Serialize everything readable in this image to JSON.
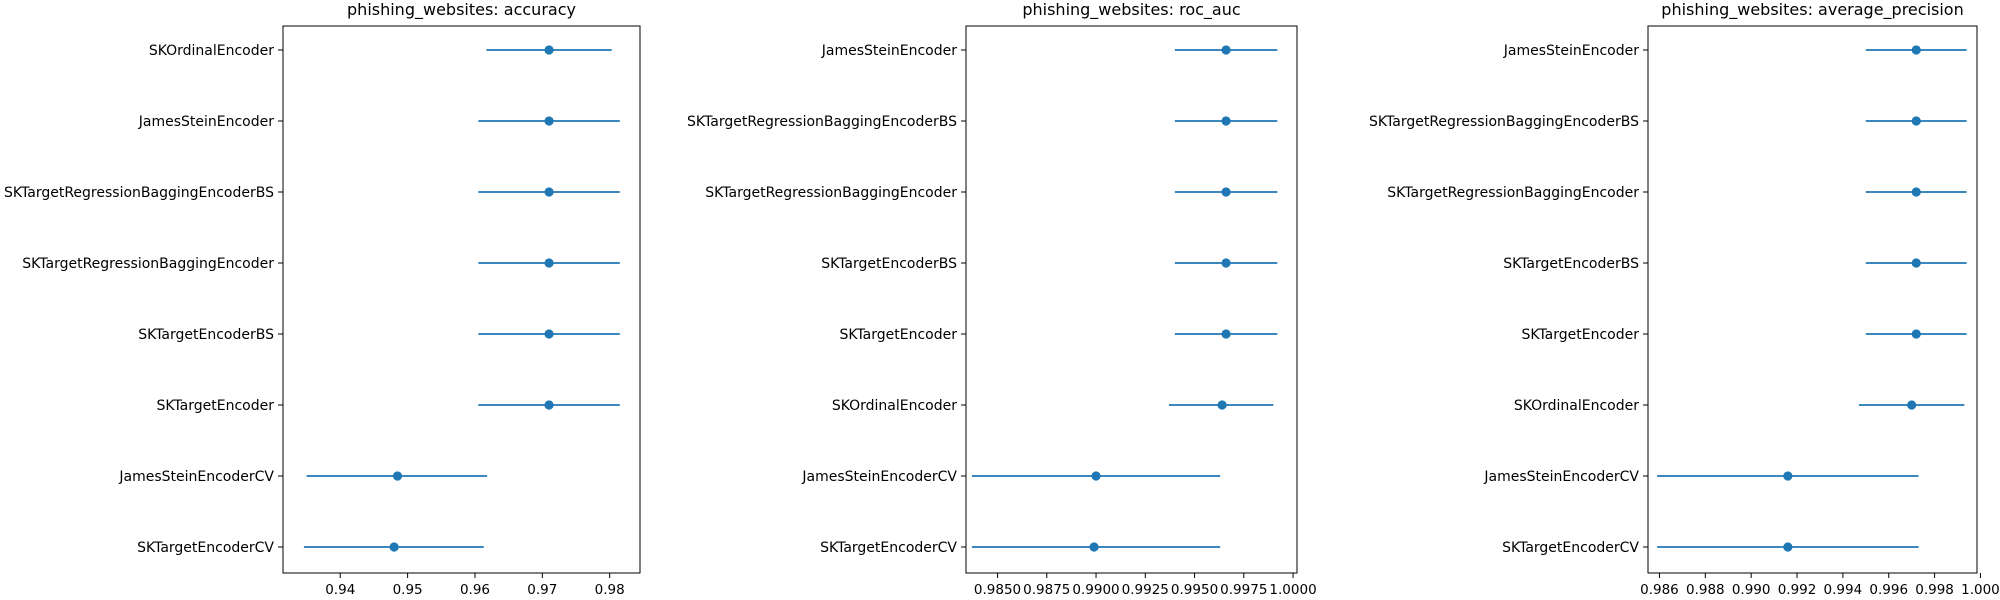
{
  "chart_data": [
    {
      "type": "errorbar",
      "title": "phishing_websites: accuracy",
      "xlim": [
        0.9315,
        0.9845
      ],
      "xticks": [
        0.94,
        0.95,
        0.96,
        0.97,
        0.98
      ],
      "xtick_labels": [
        "0.94",
        "0.95",
        "0.96",
        "0.97",
        "0.98"
      ],
      "categories": [
        "SKOrdinalEncoder",
        "JamesSteinEncoder",
        "SKTargetRegressionBaggingEncoderBS",
        "SKTargetRegressionBaggingEncoder",
        "SKTargetEncoderBS",
        "SKTargetEncoder",
        "JamesSteinEncoderCV",
        "SKTargetEncoderCV"
      ],
      "mean": [
        0.971,
        0.971,
        0.971,
        0.971,
        0.971,
        0.971,
        0.9485,
        0.948
      ],
      "lower": [
        0.9617,
        0.9605,
        0.9605,
        0.9605,
        0.9605,
        0.9605,
        0.935,
        0.9346
      ],
      "upper": [
        0.9803,
        0.9815,
        0.9815,
        0.9815,
        0.9815,
        0.9815,
        0.9618,
        0.9613
      ]
    },
    {
      "type": "errorbar",
      "title": "phishing_websites: roc_auc",
      "xlim": [
        0.9834,
        1.0002
      ],
      "xticks": [
        0.985,
        0.9875,
        0.99,
        0.9925,
        0.995,
        0.9975,
        1.0
      ],
      "xtick_labels": [
        "0.9850",
        "0.9875",
        "0.9900",
        "0.9925",
        "0.9950",
        "0.9975",
        "1.0000"
      ],
      "categories": [
        "JamesSteinEncoder",
        "SKTargetRegressionBaggingEncoderBS",
        "SKTargetRegressionBaggingEncoder",
        "SKTargetEncoderBS",
        "SKTargetEncoder",
        "SKOrdinalEncoder",
        "JamesSteinEncoderCV",
        "SKTargetEncoderCV"
      ],
      "mean": [
        0.9966,
        0.9966,
        0.9966,
        0.9966,
        0.9966,
        0.9964,
        0.99,
        0.9899
      ],
      "lower": [
        0.994,
        0.994,
        0.994,
        0.994,
        0.994,
        0.9937,
        0.9837,
        0.9837
      ],
      "upper": [
        0.9992,
        0.9992,
        0.9992,
        0.9992,
        0.9992,
        0.999,
        0.9963,
        0.9963
      ]
    },
    {
      "type": "errorbar",
      "title": "phishing_websites: average_precision",
      "xlim": [
        0.9855,
        0.99985
      ],
      "xticks": [
        0.986,
        0.988,
        0.99,
        0.992,
        0.994,
        0.996,
        0.998,
        1.0
      ],
      "xtick_labels": [
        "0.986",
        "0.988",
        "0.990",
        "0.992",
        "0.994",
        "0.996",
        "0.998",
        "1.000"
      ],
      "categories": [
        "JamesSteinEncoder",
        "SKTargetRegressionBaggingEncoderBS",
        "SKTargetRegressionBaggingEncoder",
        "SKTargetEncoderBS",
        "SKTargetEncoder",
        "SKOrdinalEncoder",
        "JamesSteinEncoderCV",
        "SKTargetEncoderCV"
      ],
      "mean": [
        0.9972,
        0.9972,
        0.9972,
        0.9972,
        0.9972,
        0.997,
        0.9916,
        0.9916
      ],
      "lower": [
        0.995,
        0.995,
        0.995,
        0.995,
        0.995,
        0.9947,
        0.9859,
        0.9859
      ],
      "upper": [
        0.9994,
        0.9994,
        0.9994,
        0.9994,
        0.9994,
        0.9993,
        0.9973,
        0.9973
      ]
    }
  ],
  "colors": {
    "series": "#1f77b4",
    "axes": "#000000"
  }
}
